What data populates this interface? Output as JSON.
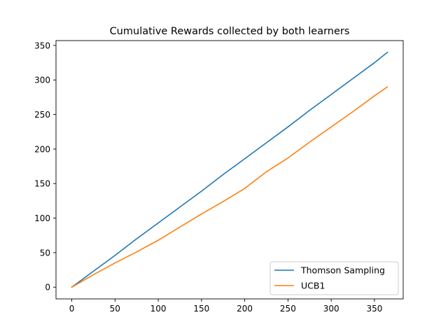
{
  "chart_data": {
    "type": "line",
    "title": "Cumulative Rewards collected by both learners",
    "xlabel": "",
    "ylabel": "",
    "xlim": [
      -18.25,
      383.25
    ],
    "ylim": [
      -17,
      357
    ],
    "x_ticks": [
      0,
      50,
      100,
      150,
      200,
      250,
      300,
      350
    ],
    "y_ticks": [
      0,
      50,
      100,
      150,
      200,
      250,
      300,
      350
    ],
    "grid": false,
    "legend_position": "lower right",
    "series": [
      {
        "name": "Thomson Sampling",
        "color": "#1f77b4",
        "x": [
          0,
          25,
          50,
          75,
          100,
          125,
          150,
          175,
          200,
          225,
          250,
          275,
          300,
          325,
          350,
          365
        ],
        "y": [
          0,
          23,
          46,
          70,
          93,
          116,
          139,
          163,
          186,
          209,
          232,
          256,
          279,
          302,
          325,
          340
        ]
      },
      {
        "name": "UCB1",
        "color": "#ff7f0e",
        "x": [
          0,
          25,
          50,
          75,
          100,
          125,
          150,
          175,
          200,
          225,
          250,
          275,
          300,
          325,
          350,
          365
        ],
        "y": [
          0,
          18,
          35,
          51,
          68,
          87,
          106,
          124,
          143,
          167,
          187,
          210,
          232,
          254,
          277,
          290
        ]
      }
    ]
  }
}
